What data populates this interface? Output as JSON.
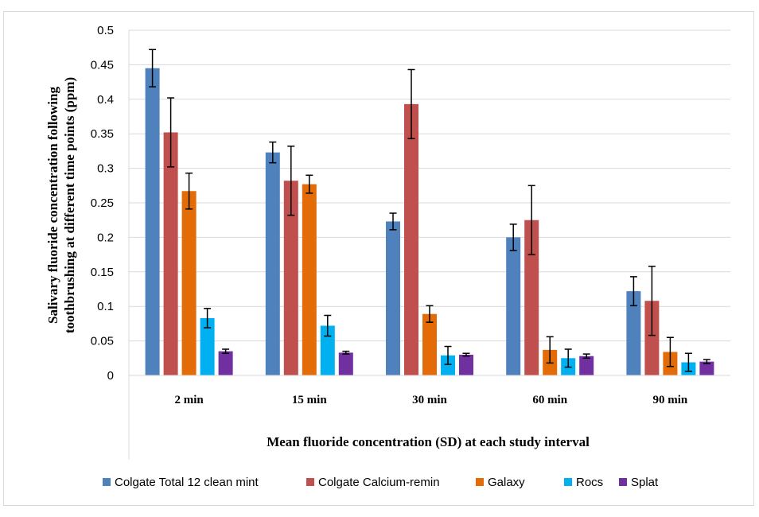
{
  "chart_data": {
    "type": "bar",
    "title": "",
    "xlabel": "Mean fluoride concentration (SD) at each study interval",
    "ylabel_lines": [
      "Salivary fluoride concentration following",
      "toothbrushing at different time points (ppm)"
    ],
    "categories": [
      "2 min",
      "15 min",
      "30 min",
      "60 min",
      "90 min"
    ],
    "ylim": [
      0,
      0.5
    ],
    "yticks": [
      "0",
      "0.05",
      "0.1",
      "0.15",
      "0.2",
      "0.25",
      "0.3",
      "0.35",
      "0.4",
      "0.45",
      "0.5"
    ],
    "ytick_values": [
      0,
      0.05,
      0.1,
      0.15,
      0.2,
      0.25,
      0.3,
      0.35,
      0.4,
      0.45,
      0.5
    ],
    "grid": true,
    "legend_position": "bottom",
    "series": [
      {
        "name": "Colgate Total 12 clean mint",
        "color": "#4f81bd",
        "values": [
          0.445,
          0.323,
          0.223,
          0.2,
          0.122
        ],
        "errors": [
          0.027,
          0.015,
          0.012,
          0.019,
          0.021
        ]
      },
      {
        "name": "Colgate Calcium-remin",
        "color": "#c0504d",
        "values": [
          0.352,
          0.282,
          0.393,
          0.225,
          0.108
        ],
        "errors": [
          0.05,
          0.05,
          0.05,
          0.05,
          0.05
        ]
      },
      {
        "name": "Galaxy",
        "color": "#e36c09",
        "values": [
          0.267,
          0.277,
          0.089,
          0.037,
          0.034
        ],
        "errors": [
          0.026,
          0.013,
          0.012,
          0.019,
          0.021
        ]
      },
      {
        "name": "Rocs",
        "color": "#00b0f0",
        "values": [
          0.083,
          0.072,
          0.029,
          0.025,
          0.019
        ],
        "errors": [
          0.014,
          0.015,
          0.013,
          0.013,
          0.013
        ]
      },
      {
        "name": "Splat",
        "color": "#7030a0",
        "values": [
          0.035,
          0.033,
          0.03,
          0.028,
          0.02
        ],
        "errors": [
          0.003,
          0.002,
          0.002,
          0.003,
          0.003
        ]
      }
    ]
  }
}
